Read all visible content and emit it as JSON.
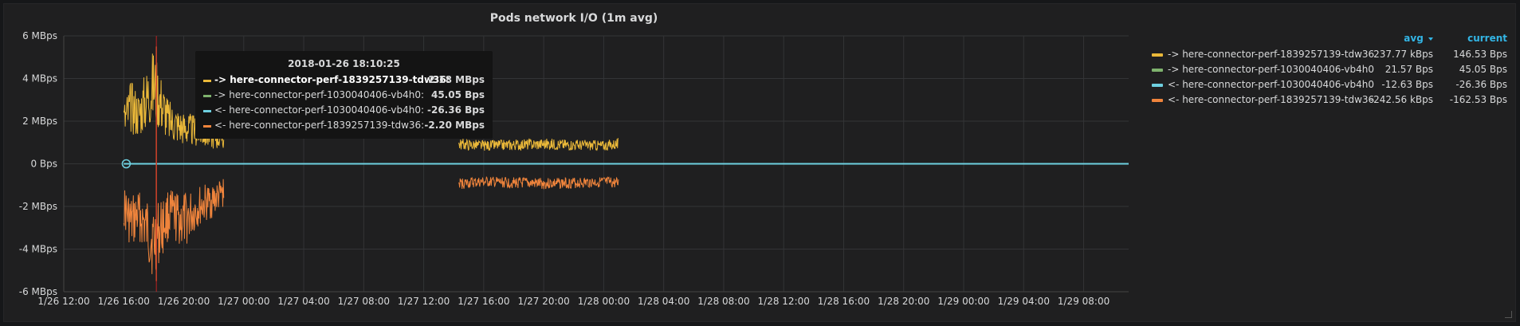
{
  "panel": {
    "title": "Pods network I/O (1m avg)"
  },
  "chart_data": {
    "type": "line",
    "title": "Pods network I/O (1m avg)",
    "xlim": [
      "2018-01-26 12:00",
      "2018-01-29 11:00"
    ],
    "x_ticks": [
      "1/26 12:00",
      "1/26 16:00",
      "1/26 20:00",
      "1/27 00:00",
      "1/27 04:00",
      "1/27 08:00",
      "1/27 12:00",
      "1/27 16:00",
      "1/27 20:00",
      "1/28 00:00",
      "1/28 04:00",
      "1/28 08:00",
      "1/28 12:00",
      "1/28 16:00",
      "1/28 20:00",
      "1/29 00:00",
      "1/29 04:00",
      "1/29 08:00"
    ],
    "y_ticks": [
      "6 MBps",
      "4 MBps",
      "2 MBps",
      "0 Bps",
      "-2 MBps",
      "-4 MBps",
      "-6 MBps"
    ],
    "ylim": [
      -6,
      6
    ],
    "yunit": "MBps",
    "grid": true,
    "legend_position": "right",
    "series": [
      {
        "name": "-> here-connector-perf-1839257139-tdw36",
        "color": "#eab839",
        "segments": [
          {
            "x": [
              "2018-01-26 16:00",
              "2018-01-26 16:30",
              "2018-01-26 17:00",
              "2018-01-26 18:00",
              "2018-01-26 19:00",
              "2018-01-26 20:00",
              "2018-01-26 21:00",
              "2018-01-26 22:00",
              "2018-01-26 22:40"
            ],
            "y": [
              3.0,
              4.0,
              3.5,
              5.5,
              3.0,
              2.5,
              2.2,
              2.0,
              1.8
            ]
          },
          {
            "x": [
              "2018-01-27 14:20",
              "2018-01-27 16:00",
              "2018-01-27 20:00",
              "2018-01-28 00:00",
              "2018-01-28 01:00"
            ],
            "y": [
              1.2,
              1.1,
              1.2,
              1.1,
              1.2
            ]
          }
        ]
      },
      {
        "name": "-> here-connector-perf-1030040406-vb4h0",
        "color": "#7eb26d",
        "segments": [
          {
            "x": [
              "2018-01-26 16:00",
              "2018-01-29 11:00"
            ],
            "y": [
              0,
              0
            ]
          }
        ]
      },
      {
        "name": "<- here-connector-perf-1030040406-vb4h0",
        "color": "#6ed0e0",
        "segments": [
          {
            "x": [
              "2018-01-26 16:00",
              "2018-01-29 11:00"
            ],
            "y": [
              0,
              0
            ]
          }
        ]
      },
      {
        "name": "<- here-connector-perf-1839257139-tdw36",
        "color": "#ef843c",
        "segments": [
          {
            "x": [
              "2018-01-26 16:00",
              "2018-01-26 16:30",
              "2018-01-26 17:00",
              "2018-01-26 18:00",
              "2018-01-26 19:00",
              "2018-01-26 20:00",
              "2018-01-26 21:00",
              "2018-01-26 22:00",
              "2018-01-26 22:40"
            ],
            "y": [
              -3.0,
              -4.2,
              -3.5,
              -5.5,
              -3.5,
              -4.0,
              -3.0,
              -2.5,
              -2.0
            ]
          },
          {
            "x": [
              "2018-01-27 14:20",
              "2018-01-27 16:00",
              "2018-01-27 20:00",
              "2018-01-28 00:00",
              "2018-01-28 01:00"
            ],
            "y": [
              -1.2,
              -1.1,
              -1.2,
              -1.1,
              -1.2
            ]
          }
        ]
      }
    ]
  },
  "legend": {
    "avg_header": "avg",
    "current_header": "current",
    "sort_icon": "caret-down-icon",
    "items": [
      {
        "name": "-> here-connector-perf-1839257139-tdw36",
        "color": "#eab839",
        "avg": "237.77 kBps",
        "current": "146.53 Bps"
      },
      {
        "name": "-> here-connector-perf-1030040406-vb4h0",
        "color": "#7eb26d",
        "avg": "21.57 Bps",
        "current": "45.05 Bps"
      },
      {
        "name": "<- here-connector-perf-1030040406-vb4h0",
        "color": "#6ed0e0",
        "avg": "-12.63 Bps",
        "current": "-26.36 Bps"
      },
      {
        "name": "<- here-connector-perf-1839257139-tdw36",
        "color": "#ef843c",
        "avg": "-242.56 kBps",
        "current": "-162.53 Bps"
      }
    ]
  },
  "tooltip": {
    "time": "2018-01-26 18:10:25",
    "rows": [
      {
        "name": "-> here-connector-perf-1839257139-tdw36:",
        "value": "2.18 MBps",
        "color": "#eab839",
        "bold": true
      },
      {
        "name": "-> here-connector-perf-1030040406-vb4h0:",
        "value": "45.05 Bps",
        "color": "#7eb26d",
        "bold": false
      },
      {
        "name": "<- here-connector-perf-1030040406-vb4h0:",
        "value": "-26.36 Bps",
        "color": "#6ed0e0",
        "bold": false
      },
      {
        "name": "<- here-connector-perf-1839257139-tdw36:",
        "value": "-2.20 MBps",
        "color": "#ef843c",
        "bold": false
      }
    ]
  },
  "crosshair": {
    "x": "2018-01-26 18:10:25"
  },
  "hover_point": {
    "x": "2018-01-26 16:10",
    "y": 0
  }
}
